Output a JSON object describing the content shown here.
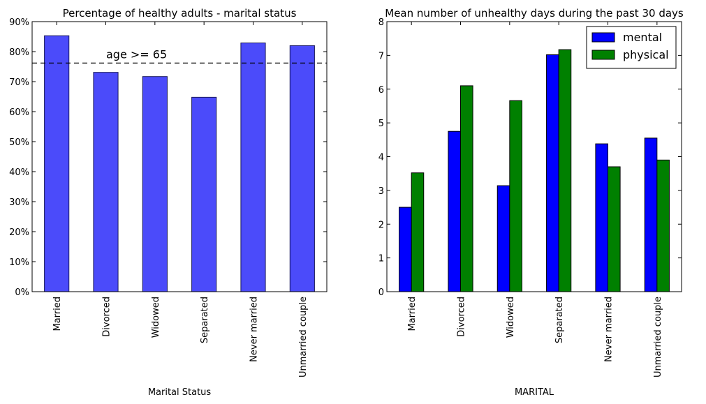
{
  "chart_data": [
    {
      "type": "bar",
      "title": "Percentage of healthy adults - marital status",
      "xlabel": "Marital Status",
      "ylabel": "",
      "categories": [
        "Married",
        "Divorced",
        "Widowed",
        "Separated",
        "Never married",
        "Unmarried couple"
      ],
      "values": [
        0.853,
        0.731,
        0.717,
        0.648,
        0.829,
        0.82
      ],
      "ylim": [
        0,
        0.9
      ],
      "yticks": [
        0,
        0.1,
        0.2,
        0.3,
        0.4,
        0.5,
        0.6,
        0.7,
        0.8,
        0.9
      ],
      "ytick_labels": [
        "0%",
        "10%",
        "20%",
        "30%",
        "40%",
        "50%",
        "60%",
        "70%",
        "80%",
        "90%"
      ],
      "bar_color": "#4b4bfa",
      "reference_line": {
        "value": 0.762,
        "style": "dashed",
        "label": "age >= 65"
      },
      "grid": false
    },
    {
      "type": "bar",
      "title": "Mean number of unhealthy days during the past 30 days",
      "xlabel": "MARITAL",
      "ylabel": "",
      "categories": [
        "Married",
        "Divorced",
        "Widowed",
        "Separated",
        "Never married",
        "Unmarried couple"
      ],
      "series": [
        {
          "name": "mental",
          "values": [
            2.5,
            4.75,
            3.14,
            7.02,
            4.38,
            4.55
          ],
          "color": "#0000ff"
        },
        {
          "name": "physical",
          "values": [
            3.52,
            6.1,
            5.66,
            7.17,
            3.7,
            3.9
          ],
          "color": "#008000"
        }
      ],
      "ylim": [
        0,
        8
      ],
      "yticks": [
        0,
        1,
        2,
        3,
        4,
        5,
        6,
        7,
        8
      ],
      "ytick_labels": [
        "0",
        "1",
        "2",
        "3",
        "4",
        "5",
        "6",
        "7",
        "8"
      ],
      "legend": "top-right",
      "grid": false
    }
  ]
}
